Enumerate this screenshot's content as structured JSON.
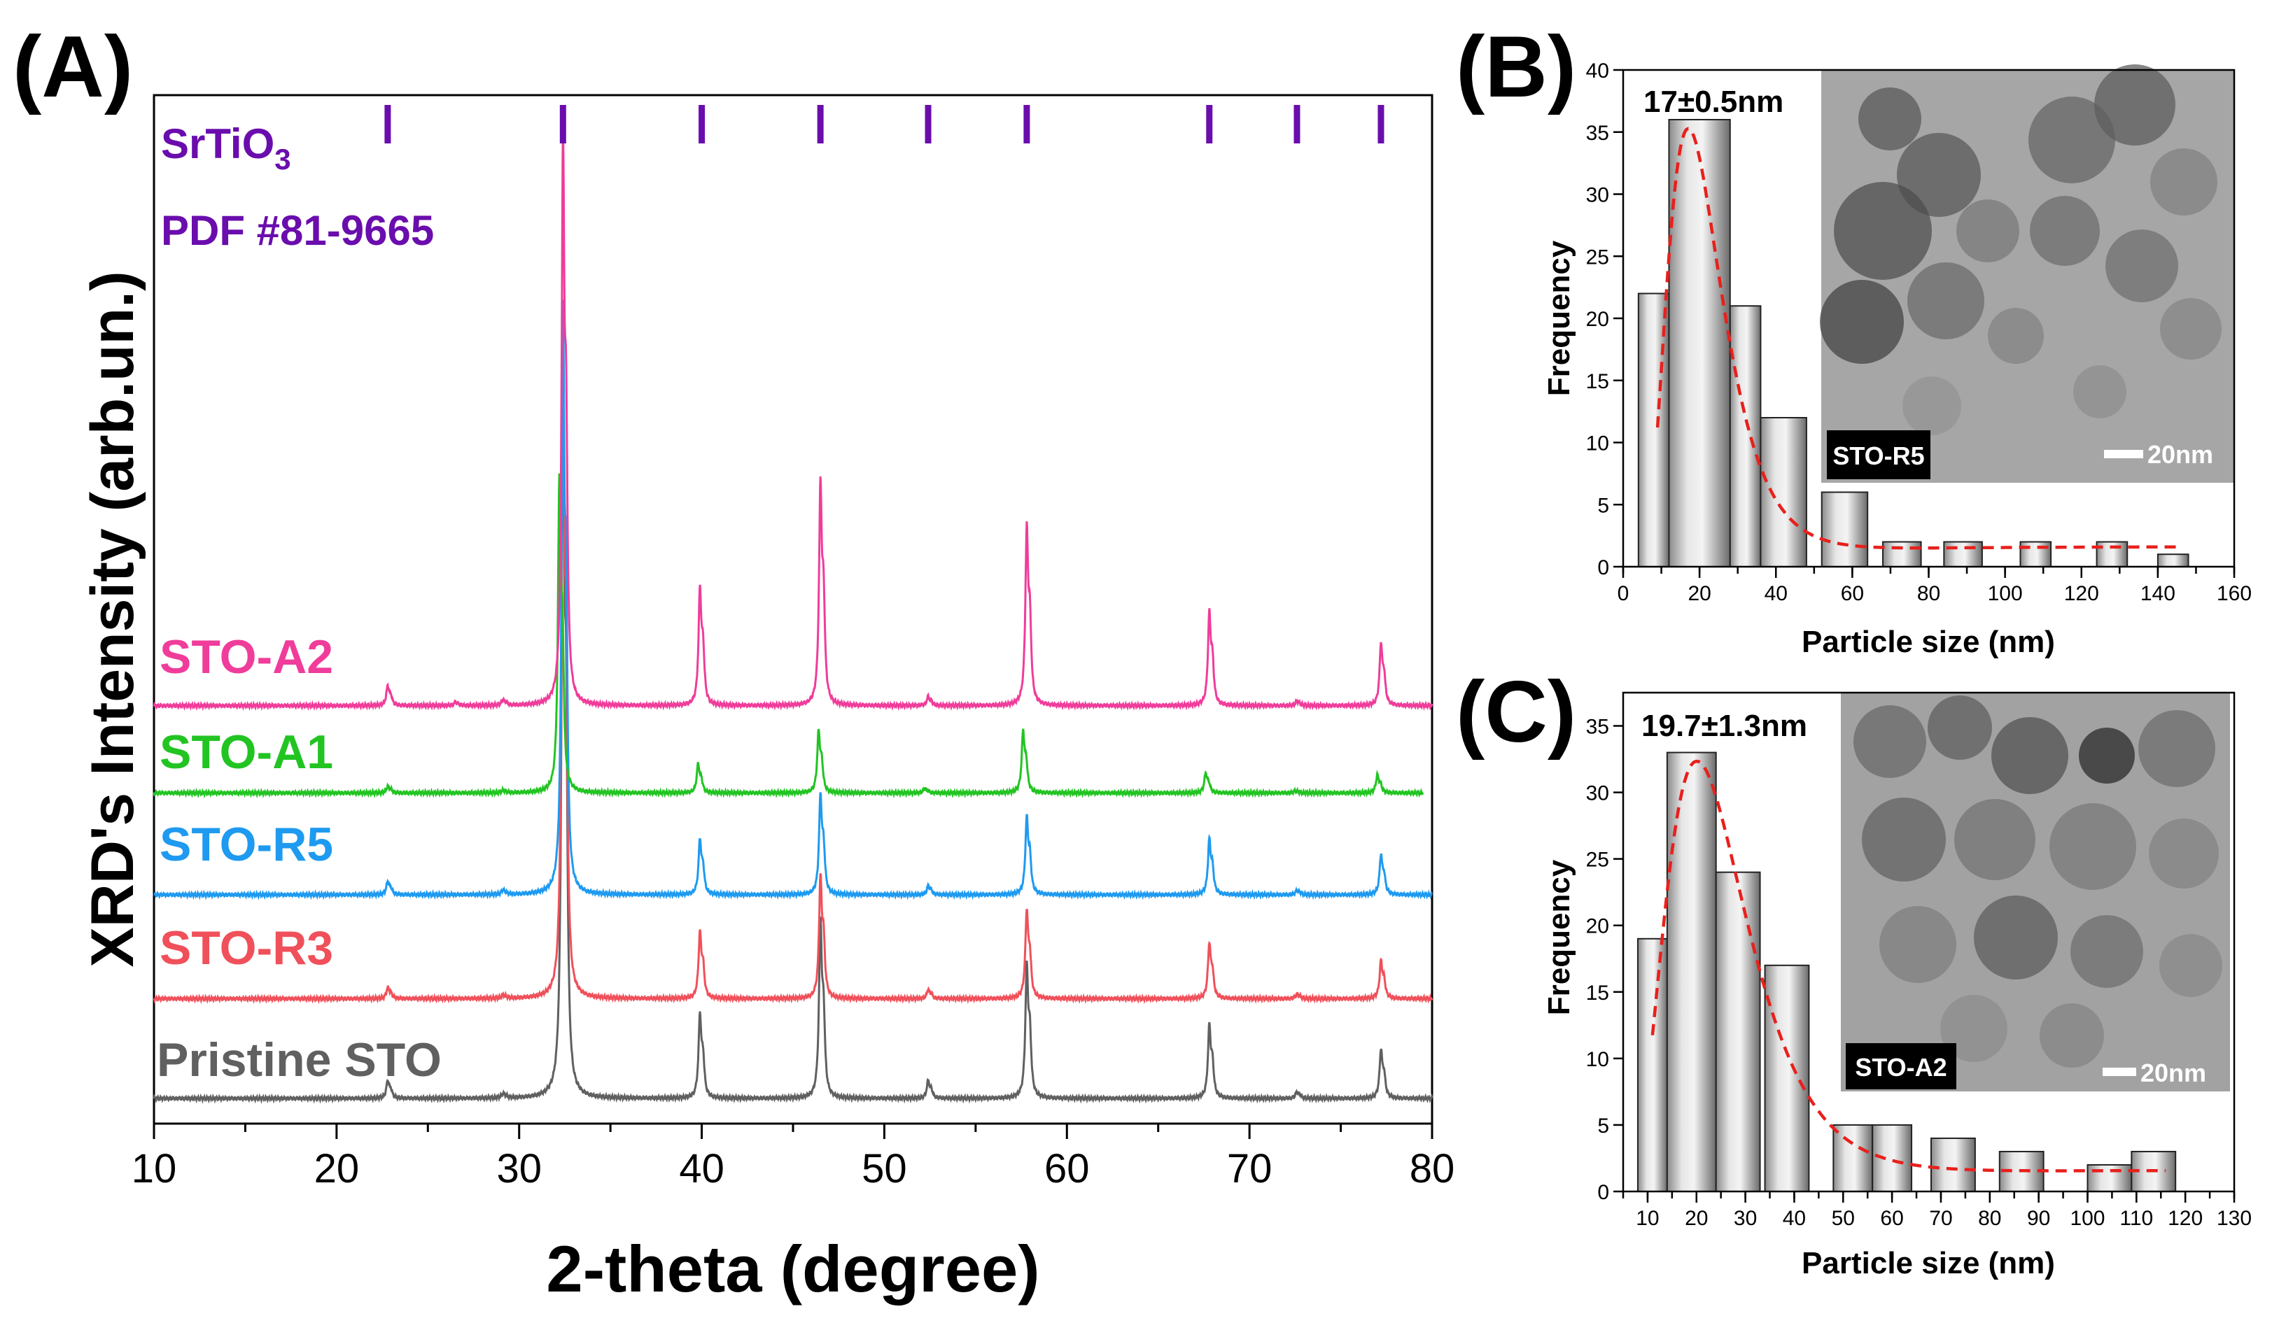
{
  "chart_data": [
    {
      "panel": "(A)",
      "type": "line",
      "xlabel": "2-theta (degree)",
      "ylabel": "XRD's Intensity (arb.un.)",
      "xlim": [
        10,
        80
      ],
      "xticks": [
        10,
        20,
        30,
        40,
        50,
        60,
        70,
        80
      ],
      "reference": {
        "label_line1": "SrTiO",
        "label_sub": "3",
        "label_line2": "PDF #81-9665",
        "color": "#6a0dad",
        "positions": [
          22.8,
          32.4,
          40.0,
          46.5,
          52.4,
          57.8,
          67.8,
          72.6,
          77.2
        ]
      },
      "series": [
        {
          "name": "Pristine STO",
          "color": "#606060",
          "baseline": 0,
          "xmax": 80,
          "peaks": [
            [
              22.8,
              8
            ],
            [
              29.1,
              2
            ],
            [
              32.4,
              330
            ],
            [
              39.9,
              38
            ],
            [
              46.5,
              80
            ],
            [
              52.4,
              8
            ],
            [
              57.8,
              60
            ],
            [
              67.8,
              33
            ],
            [
              72.6,
              3
            ],
            [
              77.2,
              22
            ]
          ]
        },
        {
          "name": "STO-R3",
          "color": "#f0505a",
          "baseline": 48,
          "xmax": 80,
          "peaks": [
            [
              22.8,
              5
            ],
            [
              29.1,
              1.5
            ],
            [
              32.4,
              290
            ],
            [
              39.9,
              30
            ],
            [
              46.5,
              55
            ],
            [
              52.4,
              4
            ],
            [
              57.8,
              40
            ],
            [
              67.8,
              25
            ],
            [
              72.6,
              2
            ],
            [
              77.2,
              17
            ]
          ]
        },
        {
          "name": "STO-R5",
          "color": "#1e9af0",
          "baseline": 98,
          "xmax": 80,
          "peaks": [
            [
              22.8,
              6
            ],
            [
              29.1,
              2
            ],
            [
              32.4,
              260
            ],
            [
              39.9,
              25
            ],
            [
              46.5,
              45
            ],
            [
              52.4,
              4
            ],
            [
              57.8,
              35
            ],
            [
              67.8,
              25
            ],
            [
              72.6,
              2
            ],
            [
              77.2,
              18
            ]
          ]
        },
        {
          "name": "STO-A1",
          "color": "#22c422",
          "baseline": 147,
          "xmax": 79.5,
          "peaks": [
            [
              22.8,
              3
            ],
            [
              29.1,
              1
            ],
            [
              32.2,
              140
            ],
            [
              39.8,
              13
            ],
            [
              46.4,
              28
            ],
            [
              52.2,
              2
            ],
            [
              57.6,
              28
            ],
            [
              67.6,
              9
            ],
            [
              72.5,
              1
            ],
            [
              77.0,
              8
            ]
          ]
        },
        {
          "name": "STO-A2",
          "color": "#f03c9a",
          "baseline": 189,
          "xmax": 80,
          "peaks": [
            [
              22.8,
              9
            ],
            [
              26.5,
              1.5
            ],
            [
              29.1,
              2.5
            ],
            [
              32.4,
              252
            ],
            [
              39.9,
              53
            ],
            [
              46.5,
              100
            ],
            [
              52.4,
              4
            ],
            [
              57.8,
              80
            ],
            [
              67.8,
              42
            ],
            [
              72.6,
              2
            ],
            [
              77.2,
              28
            ]
          ]
        }
      ]
    },
    {
      "panel": "(B)",
      "type": "bar",
      "xlabel": "Particle size (nm)",
      "ylabel": "Frequency",
      "xlim": [
        0,
        160
      ],
      "ylim": [
        0,
        40
      ],
      "xticks": [
        0,
        20,
        40,
        60,
        80,
        100,
        120,
        140,
        160
      ],
      "yticks": [
        0,
        5,
        10,
        15,
        20,
        25,
        30,
        35,
        40
      ],
      "bins": [
        [
          4,
          12,
          22
        ],
        [
          12,
          28,
          36
        ],
        [
          28,
          36,
          21
        ],
        [
          36,
          48,
          12
        ],
        [
          52,
          64,
          6
        ],
        [
          68,
          78,
          2
        ],
        [
          84,
          94,
          2
        ],
        [
          104,
          112,
          2
        ],
        [
          124,
          132,
          2
        ],
        [
          140,
          148,
          1
        ]
      ],
      "fit": {
        "type": "log-normal",
        "color": "#e8201c",
        "mode": 17,
        "range": [
          9,
          145
        ]
      },
      "annotation": "17±0.5nm",
      "inset_label": "STO-R5",
      "scale_bar": "20nm"
    },
    {
      "panel": "(C)",
      "type": "bar",
      "xlabel": "Particle size (nm)",
      "ylabel": "Frequency",
      "xlim": [
        5,
        130
      ],
      "ylim": [
        0,
        37.5
      ],
      "xticks": [
        10,
        20,
        30,
        40,
        50,
        60,
        70,
        80,
        90,
        100,
        110,
        120,
        130
      ],
      "yticks": [
        0,
        5,
        10,
        15,
        20,
        25,
        30,
        35
      ],
      "bins": [
        [
          8,
          14,
          19
        ],
        [
          14,
          24,
          33
        ],
        [
          24,
          33,
          24
        ],
        [
          34,
          43,
          17
        ],
        [
          48,
          56,
          5
        ],
        [
          56,
          64,
          5
        ],
        [
          68,
          77,
          4
        ],
        [
          82,
          91,
          3
        ],
        [
          100,
          109,
          2
        ],
        [
          109,
          118,
          3
        ]
      ],
      "fit": {
        "type": "log-normal",
        "color": "#e8201c",
        "mode": 20,
        "range": [
          11,
          116
        ]
      },
      "annotation": "19.7±1.3nm",
      "inset_label": "STO-A2",
      "scale_bar": "20nm"
    }
  ]
}
